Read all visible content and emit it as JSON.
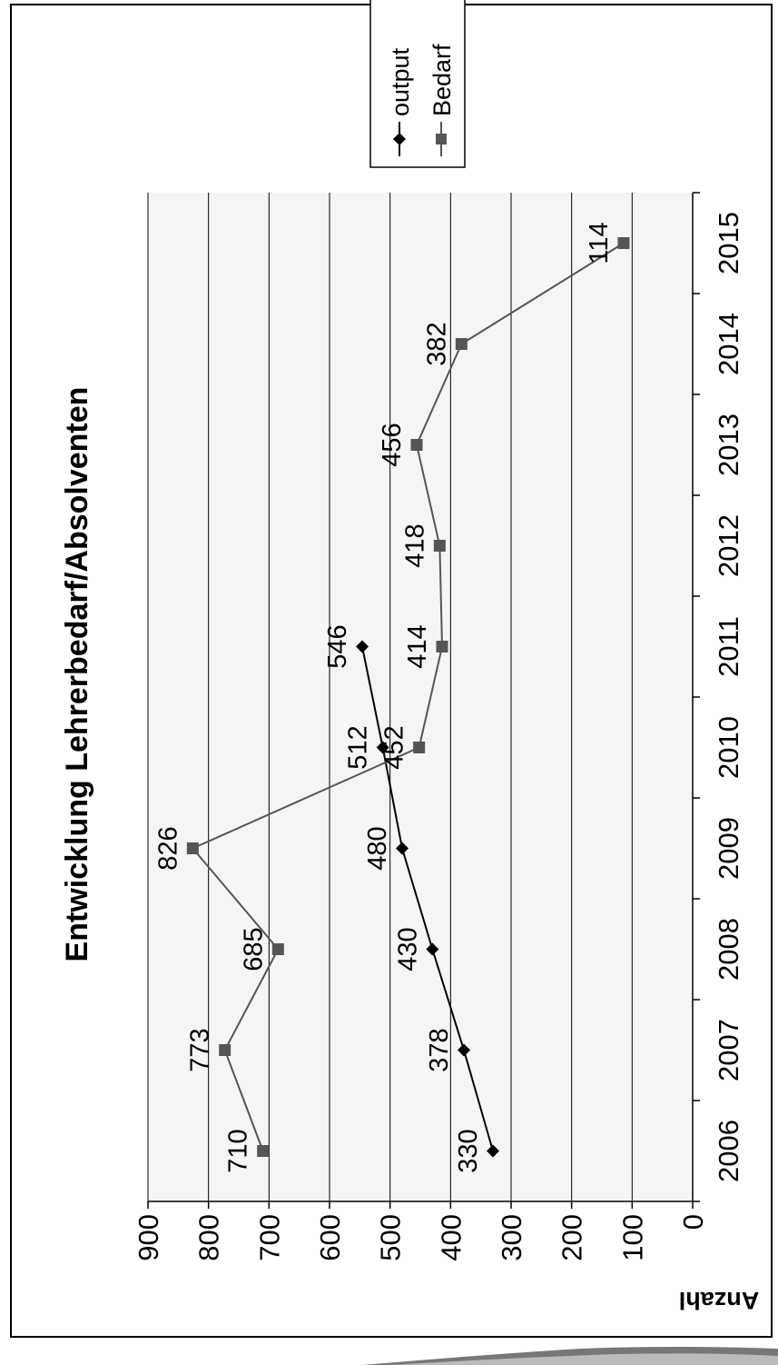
{
  "chart_data": {
    "type": "line",
    "title": "Entwicklung Lehrerbedarf/Absolventen",
    "ylabel": "Anzahl",
    "xlabel": "",
    "categories": [
      "2006",
      "2007",
      "2008",
      "2009",
      "2010",
      "2011",
      "2012",
      "2013",
      "2014",
      "2015"
    ],
    "y_ticks": [
      "0",
      "100",
      "200",
      "300",
      "400",
      "500",
      "600",
      "700",
      "800",
      "900"
    ],
    "ylim": [
      0,
      900
    ],
    "grid": true,
    "legend_position": "top-right",
    "series": [
      {
        "name": "output",
        "marker": "diamond",
        "color": "#000000",
        "values": [
          330,
          378,
          430,
          480,
          512,
          546,
          null,
          null,
          null,
          null
        ]
      },
      {
        "name": "Bedarf",
        "marker": "square",
        "color": "#555555",
        "values": [
          710,
          773,
          685,
          826,
          452,
          414,
          418,
          456,
          382,
          114
        ]
      }
    ]
  }
}
